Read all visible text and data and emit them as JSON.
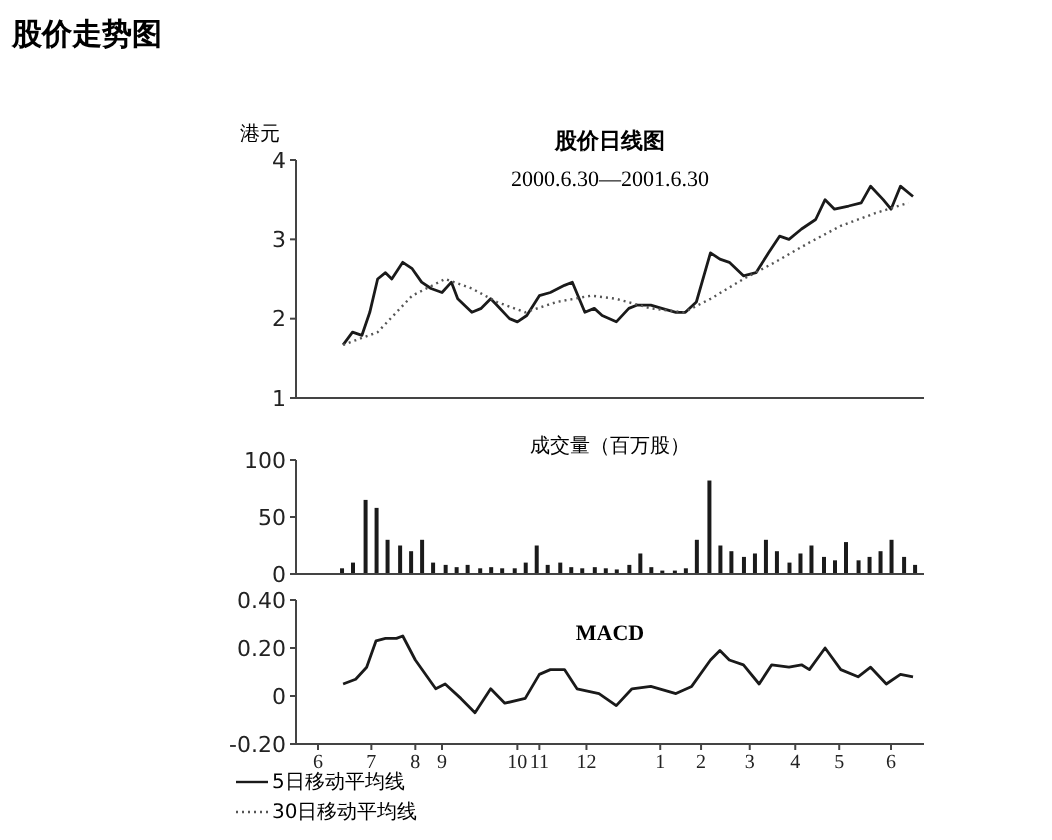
{
  "chart_data": [
    {
      "type": "line",
      "title": "股价走势图",
      "subtitle": "股价日线图",
      "annotations": [
        "2000.6.30—2001.6.30"
      ],
      "ylabel": "港元",
      "ylim": [
        1,
        4
      ],
      "yticks": [
        1,
        2,
        3,
        4
      ],
      "xlim": [
        "2000-06-01",
        "2001-07-06"
      ],
      "tick_labels": "y",
      "grid": false,
      "legend": "bottom left",
      "marker": "none",
      "series": [
        {
          "name": "5日移动平均线",
          "color": "#1a1a1a",
          "line_style": "solid",
          "x": [
            "2000-07-01",
            "2000-07-07",
            "2000-07-13",
            "2000-07-18",
            "2000-07-23",
            "2000-07-28",
            "2000-08-01",
            "2000-08-08",
            "2000-08-14",
            "2000-08-20",
            "2000-08-26",
            "2000-09-02",
            "2000-09-08",
            "2000-09-12",
            "2000-09-21",
            "2000-09-27",
            "2000-10-03",
            "2000-10-07",
            "2000-10-15",
            "2000-10-20",
            "2000-10-26",
            "2000-11-03",
            "2000-11-10",
            "2000-11-19",
            "2000-11-24",
            "2000-12-02",
            "2000-12-08",
            "2000-12-13",
            "2000-12-22",
            "2000-12-30",
            "2001-01-04",
            "2001-01-13",
            "2001-01-20",
            "2001-01-29",
            "2001-02-04",
            "2001-02-11",
            "2001-02-20",
            "2001-02-26",
            "2001-03-04",
            "2001-03-13",
            "2001-03-21",
            "2001-03-29",
            "2001-04-05",
            "2001-04-11",
            "2001-04-19",
            "2001-04-28",
            "2001-05-04",
            "2001-05-10",
            "2001-05-19",
            "2001-05-27",
            "2001-06-02",
            "2001-06-10",
            "2001-06-15",
            "2001-06-21",
            "2001-06-29"
          ],
          "values": [
            1.67,
            1.83,
            1.79,
            2.08,
            2.5,
            2.58,
            2.5,
            2.71,
            2.63,
            2.46,
            2.38,
            2.33,
            2.46,
            2.25,
            2.08,
            2.13,
            2.25,
            2.17,
            2.0,
            1.96,
            2.04,
            2.29,
            2.33,
            2.42,
            2.46,
            2.08,
            2.13,
            2.04,
            1.96,
            2.13,
            2.17,
            2.17,
            2.13,
            2.08,
            2.08,
            2.21,
            2.83,
            2.75,
            2.71,
            2.54,
            2.58,
            2.83,
            3.04,
            3.0,
            3.13,
            3.25,
            3.5,
            3.38,
            3.42,
            3.46,
            3.67,
            3.5,
            3.38,
            3.67,
            3.54
          ]
        },
        {
          "name": "30日移动平均线",
          "color": "#555555",
          "line_style": "dotted",
          "x": [
            "2000-07-01",
            "2000-07-23",
            "2000-08-14",
            "2000-09-04",
            "2000-09-21",
            "2000-10-07",
            "2000-10-25",
            "2000-11-14",
            "2000-12-06",
            "2000-12-22",
            "2001-01-13",
            "2001-02-03",
            "2001-02-20",
            "2001-03-13",
            "2001-04-02",
            "2001-04-24",
            "2001-05-14",
            "2001-06-05",
            "2001-06-26"
          ],
          "values": [
            1.67,
            1.83,
            2.29,
            2.5,
            2.38,
            2.21,
            2.08,
            2.21,
            2.29,
            2.25,
            2.13,
            2.08,
            2.25,
            2.5,
            2.71,
            2.96,
            3.17,
            3.33,
            3.46
          ]
        }
      ]
    },
    {
      "type": "bar",
      "title": "成交量（百万股）",
      "ylim": [
        0,
        100
      ],
      "yticks": [
        0,
        50,
        100
      ],
      "xlim": [
        "2000-06-01",
        "2001-07-06"
      ],
      "tick_labels": "y",
      "grid": false,
      "color": "#1a1a1a",
      "x": [
        "2000-06-30",
        "2000-07-07",
        "2000-07-15",
        "2000-07-22",
        "2000-07-29",
        "2000-08-06",
        "2000-08-13",
        "2000-08-20",
        "2000-08-27",
        "2000-09-04",
        "2000-09-11",
        "2000-09-18",
        "2000-09-26",
        "2000-10-03",
        "2000-10-10",
        "2000-10-18",
        "2000-10-25",
        "2000-11-01",
        "2000-11-08",
        "2000-11-16",
        "2000-11-23",
        "2000-11-30",
        "2000-12-08",
        "2000-12-15",
        "2000-12-22",
        "2000-12-30",
        "2001-01-06",
        "2001-01-13",
        "2001-01-20",
        "2001-01-28",
        "2001-02-04",
        "2001-02-11",
        "2001-02-19",
        "2001-02-26",
        "2001-03-05",
        "2001-03-13",
        "2001-03-20",
        "2001-03-27",
        "2001-04-03",
        "2001-04-11",
        "2001-04-18",
        "2001-04-25",
        "2001-05-03",
        "2001-05-10",
        "2001-05-17",
        "2001-05-25",
        "2001-06-01",
        "2001-06-08",
        "2001-06-15",
        "2001-06-23",
        "2001-06-30"
      ],
      "values": [
        5,
        10,
        65,
        58,
        30,
        25,
        20,
        30,
        10,
        8,
        6,
        8,
        5,
        6,
        5,
        5,
        10,
        25,
        8,
        10,
        6,
        5,
        6,
        5,
        4,
        8,
        18,
        6,
        3,
        3,
        5,
        30,
        82,
        25,
        20,
        15,
        18,
        30,
        20,
        10,
        18,
        25,
        15,
        12,
        28,
        12,
        15,
        20,
        30,
        15,
        8
      ]
    },
    {
      "type": "line",
      "title": "MACD",
      "ylim": [
        -0.2,
        0.4
      ],
      "yticks": [
        {
          "value": -0.2,
          "label": "-0.20"
        },
        0,
        {
          "value": 0.2,
          "label": "0.20"
        },
        {
          "value": 0.4,
          "label": "0.40"
        }
      ],
      "xlim": [
        "2000-06-01",
        "2001-07-06"
      ],
      "xticks": [
        {
          "value": "2000-06-15",
          "label": "6"
        },
        {
          "value": "2000-07-19",
          "label": "7"
        },
        {
          "value": "2000-08-16",
          "label": "8"
        },
        {
          "value": "2000-09-02",
          "label": "9"
        },
        {
          "value": "2000-10-20",
          "label": "10"
        },
        {
          "value": "2000-11-03",
          "label": "11"
        },
        {
          "value": "2000-12-03",
          "label": "12"
        },
        {
          "value": "2001-01-19",
          "label": "1"
        },
        {
          "value": "2001-02-14",
          "label": "2"
        },
        {
          "value": "2001-03-17",
          "label": "3"
        },
        {
          "value": "2001-04-15",
          "label": "4"
        },
        {
          "value": "2001-05-13",
          "label": "5"
        },
        {
          "value": "2001-06-15",
          "label": "6"
        }
      ],
      "grid": false,
      "marker": "none",
      "line_style": "solid",
      "color": "#1a1a1a",
      "x": [
        "2000-07-01",
        "2000-07-09",
        "2000-07-16",
        "2000-07-22",
        "2000-07-28",
        "2000-08-04",
        "2000-08-08",
        "2000-08-16",
        "2000-08-29",
        "2000-09-04",
        "2000-09-14",
        "2000-09-23",
        "2000-10-03",
        "2000-10-12",
        "2000-10-25",
        "2000-11-03",
        "2000-11-10",
        "2000-11-19",
        "2000-11-27",
        "2000-12-11",
        "2000-12-22",
        "2001-01-01",
        "2001-01-13",
        "2001-01-29",
        "2001-02-08",
        "2001-02-20",
        "2001-02-26",
        "2001-03-04",
        "2001-03-13",
        "2001-03-23",
        "2001-03-31",
        "2001-04-11",
        "2001-04-19",
        "2001-04-24",
        "2001-05-04",
        "2001-05-14",
        "2001-05-25",
        "2001-06-02",
        "2001-06-12",
        "2001-06-21",
        "2001-06-29"
      ],
      "values": [
        0.05,
        0.07,
        0.12,
        0.23,
        0.24,
        0.24,
        0.25,
        0.15,
        0.03,
        0.05,
        -0.01,
        -0.07,
        0.03,
        -0.03,
        -0.01,
        0.09,
        0.11,
        0.11,
        0.03,
        0.01,
        -0.04,
        0.03,
        0.04,
        0.01,
        0.04,
        0.15,
        0.19,
        0.15,
        0.13,
        0.05,
        0.13,
        0.12,
        0.13,
        0.11,
        0.2,
        0.11,
        0.08,
        0.12,
        0.05,
        0.09,
        0.08
      ]
    }
  ]
}
